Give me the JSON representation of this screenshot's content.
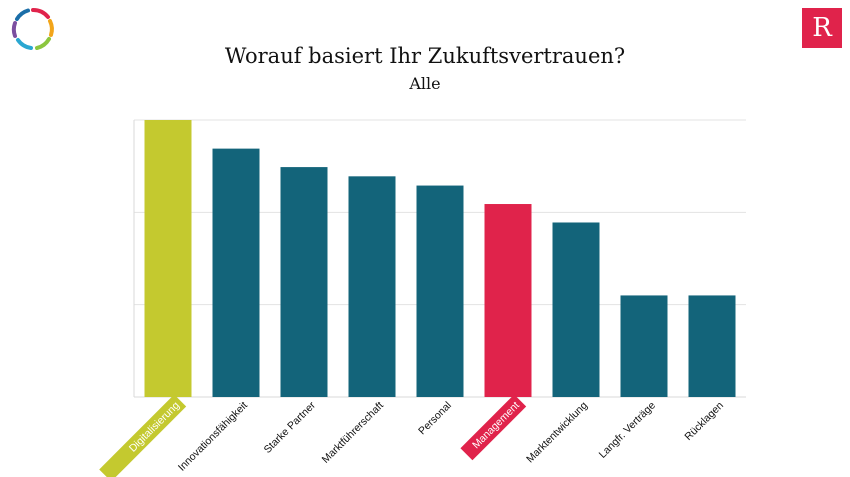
{
  "slide": {
    "title": "Worauf basiert Ihr Zukuftsvertrauen?",
    "subtitle": "Alle"
  },
  "brand": {
    "logo_letter": "R",
    "logo_color": "#e0234b",
    "ring_colors": [
      "#e0234b",
      "#f2a51a",
      "#8cc63f",
      "#2aa7d1",
      "#7b4fa0",
      "#1b6ea8"
    ]
  },
  "chart_data": {
    "type": "bar",
    "title": "Worauf basiert Ihr Zukuftsvertrauen?",
    "subtitle": "Alle",
    "categories": [
      "Digitalisierung",
      "Innovationsfähigkeit",
      "Starke Partner",
      "Marktführerschaft",
      "Personal",
      "Management",
      "Marktentwicklung",
      "Langfr. Verträge",
      "Rücklagen"
    ],
    "values": [
      30,
      26.9,
      24.9,
      23.9,
      22.9,
      20.9,
      18.9,
      11,
      11
    ],
    "ylim": [
      0,
      30
    ],
    "grid": true,
    "bar_colors": [
      "#c4c92f",
      "#13647a",
      "#13647a",
      "#13647a",
      "#13647a",
      "#e0234b",
      "#13647a",
      "#13647a",
      "#13647a"
    ],
    "highlighted": [
      0,
      5
    ]
  }
}
